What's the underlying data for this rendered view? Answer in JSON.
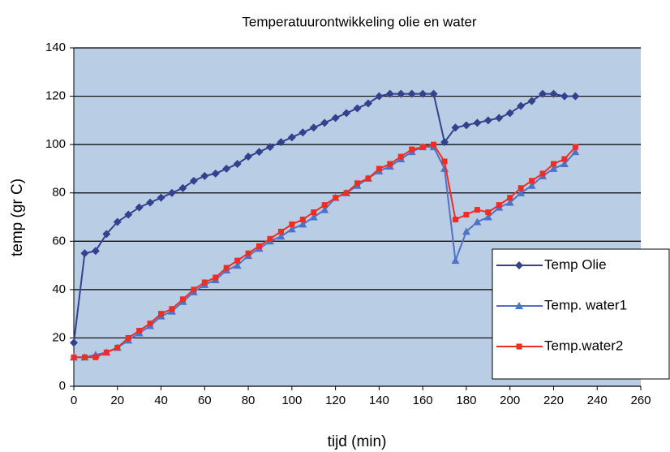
{
  "chart_data": {
    "type": "line",
    "title": "Temperatuurontwikkeling olie en water",
    "x_label": "tijd (min)",
    "y_label": "temp (gr C)",
    "x": [
      0,
      5,
      10,
      15,
      20,
      25,
      30,
      35,
      40,
      45,
      50,
      55,
      60,
      65,
      70,
      75,
      80,
      85,
      90,
      95,
      100,
      105,
      110,
      115,
      120,
      125,
      130,
      135,
      140,
      145,
      150,
      155,
      160,
      165,
      170,
      175,
      180,
      185,
      190,
      195,
      200,
      205,
      210,
      215,
      220,
      225,
      230
    ],
    "series": [
      {
        "name": "Temp Olie",
        "color": "#34418c",
        "marker": "diamond",
        "values": [
          18,
          55,
          56,
          63,
          68,
          71,
          74,
          76,
          78,
          80,
          82,
          85,
          87,
          88,
          90,
          92,
          95,
          97,
          99,
          101,
          103,
          105,
          107,
          109,
          111,
          113,
          115,
          117,
          120,
          121,
          121,
          121,
          121,
          121,
          101,
          107,
          108,
          109,
          110,
          111,
          113,
          116,
          118,
          121,
          121,
          120,
          120
        ]
      },
      {
        "name": "Temp. water1",
        "color": "#4f73c4",
        "marker": "triangle",
        "values": [
          12,
          12,
          13,
          14,
          16,
          19,
          22,
          25,
          29,
          31,
          35,
          39,
          42,
          44,
          48,
          50,
          54,
          57,
          60,
          62,
          65,
          67,
          70,
          73,
          78,
          80,
          83,
          86,
          89,
          91,
          94,
          97,
          99,
          99,
          90,
          52,
          64,
          68,
          70,
          74,
          76,
          80,
          83,
          87,
          90,
          92,
          97
        ]
      },
      {
        "name": "Temp.water2",
        "color": "#ee2d24",
        "marker": "square",
        "values": [
          12,
          12,
          12,
          14,
          16,
          20,
          23,
          26,
          30,
          32,
          36,
          40,
          43,
          45,
          49,
          52,
          55,
          58,
          61,
          64,
          67,
          69,
          72,
          75,
          78,
          80,
          84,
          86,
          90,
          92,
          95,
          98,
          99,
          100,
          93,
          69,
          71,
          73,
          72,
          75,
          78,
          82,
          85,
          88,
          92,
          94,
          99
        ]
      }
    ],
    "xlim": [
      0,
      260
    ],
    "xticks": [
      0,
      20,
      40,
      60,
      80,
      100,
      120,
      140,
      160,
      180,
      200,
      220,
      240,
      260
    ],
    "ylim": [
      0,
      140
    ],
    "yticks": [
      0,
      20,
      40,
      60,
      80,
      100,
      120,
      140
    ],
    "grid": true,
    "plot_background": "#b9cde5",
    "legend": "lower right"
  }
}
